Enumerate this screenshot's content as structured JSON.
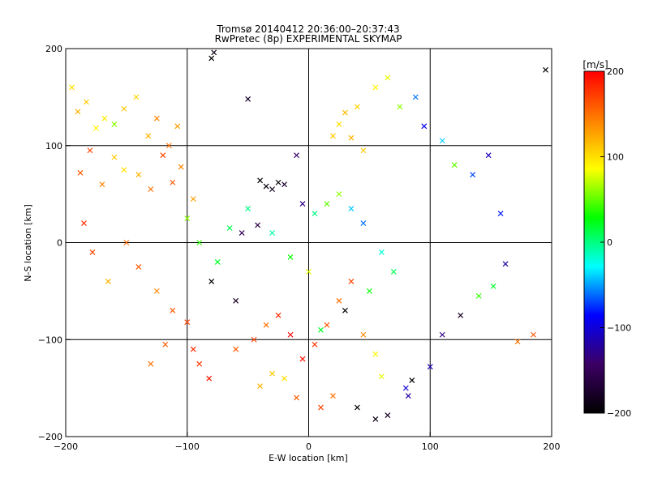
{
  "chart_data": {
    "type": "scatter",
    "title": "Tromsø 20140412 20:36:00–20:37:43",
    "subtitle": "RwPretec (8p) EXPERIMENTAL SKYMAP",
    "xlabel": "E-W location [km]",
    "ylabel": "N-S location [km]",
    "xlim": [
      -200,
      200
    ],
    "ylim": [
      -200,
      200
    ],
    "xticks": [
      -200,
      -100,
      0,
      100,
      200
    ],
    "yticks": [
      -200,
      -100,
      0,
      100,
      200
    ],
    "grid": true,
    "colorbar": {
      "label": "[m/s]",
      "range": [
        -200,
        200
      ],
      "ticks": [
        200,
        100,
        0,
        -100,
        -200
      ],
      "colors": [
        "#000000",
        "#3c0064",
        "#0000ff",
        "#00ffff",
        "#00ff00",
        "#ffff00",
        "#ff8000",
        "#ff0000"
      ]
    },
    "series": [
      {
        "marker": "x",
        "points": [
          [
            -195,
            160,
            100
          ],
          [
            -190,
            135,
            120
          ],
          [
            -183,
            145,
            110
          ],
          [
            -175,
            118,
            90
          ],
          [
            -168,
            128,
            95
          ],
          [
            -160,
            122,
            60
          ],
          [
            -152,
            138,
            110
          ],
          [
            -142,
            150,
            105
          ],
          [
            -132,
            110,
            120
          ],
          [
            -125,
            128,
            140
          ],
          [
            -115,
            100,
            150
          ],
          [
            -108,
            120,
            130
          ],
          [
            -188,
            72,
            160
          ],
          [
            -180,
            95,
            170
          ],
          [
            -170,
            60,
            140
          ],
          [
            -160,
            88,
            110
          ],
          [
            -152,
            75,
            100
          ],
          [
            -140,
            70,
            120
          ],
          [
            -130,
            55,
            150
          ],
          [
            -120,
            90,
            170
          ],
          [
            -112,
            62,
            160
          ],
          [
            -105,
            78,
            140
          ],
          [
            -95,
            45,
            130
          ],
          [
            -185,
            20,
            180
          ],
          [
            -178,
            -10,
            170
          ],
          [
            -165,
            -40,
            120
          ],
          [
            -150,
            0,
            150
          ],
          [
            -140,
            -25,
            160
          ],
          [
            -125,
            -50,
            140
          ],
          [
            -112,
            -70,
            160
          ],
          [
            -100,
            -82,
            170
          ],
          [
            -95,
            -110,
            180
          ],
          [
            -90,
            -125,
            175
          ],
          [
            -82,
            -140,
            190
          ],
          [
            -118,
            -105,
            160
          ],
          [
            -130,
            -125,
            150
          ],
          [
            -80,
            190,
            -200
          ],
          [
            -78,
            196,
            -190
          ],
          [
            -50,
            148,
            -180
          ],
          [
            -25,
            62,
            -200
          ],
          [
            -35,
            58,
            -195
          ],
          [
            -30,
            55,
            -185
          ],
          [
            -20,
            60,
            -170
          ],
          [
            -40,
            64,
            -200
          ],
          [
            -42,
            18,
            -160
          ],
          [
            -55,
            10,
            -150
          ],
          [
            -60,
            -60,
            -180
          ],
          [
            -80,
            -40,
            -200
          ],
          [
            -40,
            -148,
            120
          ],
          [
            -30,
            -135,
            110
          ],
          [
            -20,
            -140,
            100
          ],
          [
            -10,
            -160,
            160
          ],
          [
            10,
            -170,
            170
          ],
          [
            20,
            -158,
            150
          ],
          [
            40,
            -170,
            -200
          ],
          [
            55,
            -182,
            -190
          ],
          [
            65,
            -178,
            -180
          ],
          [
            85,
            -142,
            -200
          ],
          [
            82,
            -158,
            -120
          ],
          [
            20,
            110,
            110
          ],
          [
            25,
            122,
            100
          ],
          [
            30,
            134,
            115
          ],
          [
            40,
            140,
            105
          ],
          [
            35,
            108,
            120
          ],
          [
            45,
            95,
            110
          ],
          [
            55,
            160,
            90
          ],
          [
            65,
            170,
            80
          ],
          [
            75,
            140,
            60
          ],
          [
            88,
            150,
            -60
          ],
          [
            95,
            120,
            -90
          ],
          [
            110,
            105,
            -40
          ],
          [
            120,
            80,
            50
          ],
          [
            135,
            70,
            -70
          ],
          [
            148,
            90,
            -110
          ],
          [
            158,
            30,
            -80
          ],
          [
            162,
            -22,
            -120
          ],
          [
            152,
            -45,
            20
          ],
          [
            140,
            -55,
            40
          ],
          [
            125,
            -75,
            -180
          ],
          [
            110,
            -95,
            -130
          ],
          [
            100,
            -128,
            -110
          ],
          [
            80,
            -150,
            -100
          ],
          [
            -10,
            90,
            -140
          ],
          [
            -5,
            40,
            -130
          ],
          [
            5,
            30,
            0
          ],
          [
            15,
            40,
            50
          ],
          [
            25,
            50,
            60
          ],
          [
            35,
            35,
            -40
          ],
          [
            45,
            20,
            -60
          ],
          [
            60,
            -10,
            -20
          ],
          [
            70,
            -30,
            10
          ],
          [
            50,
            -50,
            30
          ],
          [
            30,
            -70,
            -200
          ],
          [
            10,
            -90,
            20
          ],
          [
            -60,
            -110,
            160
          ],
          [
            -45,
            -100,
            170
          ],
          [
            -35,
            -85,
            150
          ],
          [
            -25,
            -75,
            180
          ],
          [
            -15,
            -95,
            200
          ],
          [
            -5,
            -120,
            190
          ],
          [
            5,
            -105,
            180
          ],
          [
            15,
            -85,
            160
          ],
          [
            25,
            -60,
            150
          ],
          [
            35,
            -40,
            170
          ],
          [
            45,
            -95,
            140
          ],
          [
            55,
            -115,
            90
          ],
          [
            -100,
            25,
            60
          ],
          [
            -90,
            0,
            40
          ],
          [
            -75,
            -20,
            20
          ],
          [
            -65,
            15,
            10
          ],
          [
            -50,
            35,
            0
          ],
          [
            -30,
            10,
            -10
          ],
          [
            -15,
            -15,
            30
          ],
          [
            0,
            -30,
            80
          ],
          [
            185,
            -95,
            160
          ],
          [
            172,
            -102,
            150
          ],
          [
            195,
            178,
            -200
          ],
          [
            60,
            -138,
            80
          ]
        ]
      }
    ]
  }
}
